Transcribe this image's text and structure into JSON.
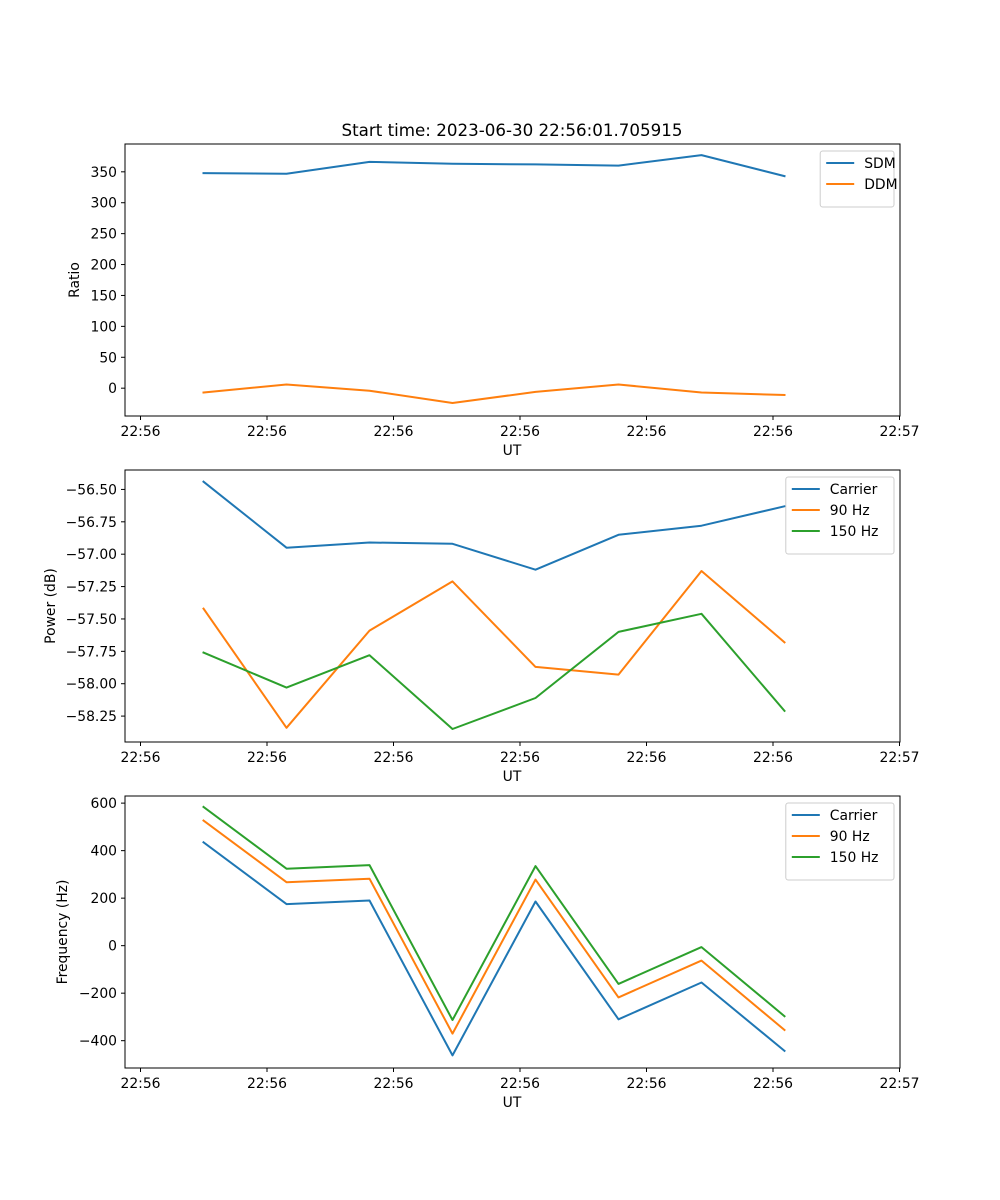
{
  "figure_title": "Start time: 2023-06-30 22:56:01.705915",
  "colors": {
    "blue": "#1f77b4",
    "orange": "#ff7f0e",
    "green": "#2ca02c"
  },
  "chart_data": [
    {
      "type": "line",
      "title": "Start time: 2023-06-30 22:56:01.705915",
      "xlabel": "UT",
      "ylabel": "Ratio",
      "x_tick_labels": [
        "22:56",
        "22:56",
        "22:56",
        "22:56",
        "22:56",
        "22:56",
        "22:57"
      ],
      "y_ticks": [
        0,
        50,
        100,
        150,
        200,
        250,
        300,
        350
      ],
      "ylim": [
        -45,
        395
      ],
      "x_index": [
        0,
        1,
        2,
        3,
        4,
        5,
        6,
        7
      ],
      "legend_position": "upper right",
      "grid": false,
      "series": [
        {
          "name": "SDM",
          "color": "#1f77b4",
          "values": [
            348,
            347,
            366,
            363,
            362,
            360,
            377,
            343
          ]
        },
        {
          "name": "DDM",
          "color": "#ff7f0e",
          "values": [
            -7,
            6,
            -4,
            -24,
            -6,
            6,
            -7,
            -11
          ]
        }
      ]
    },
    {
      "type": "line",
      "xlabel": "UT",
      "ylabel": "Power (dB)",
      "x_tick_labels": [
        "22:56",
        "22:56",
        "22:56",
        "22:56",
        "22:56",
        "22:56",
        "22:57"
      ],
      "y_ticks": [
        -58.25,
        -58.0,
        -57.75,
        -57.5,
        -57.25,
        -57.0,
        -56.75,
        -56.5
      ],
      "y_tick_labels": [
        "−58.25",
        "−58.00",
        "−57.75",
        "−57.50",
        "−57.25",
        "−57.00",
        "−56.75",
        "−56.50"
      ],
      "ylim": [
        -58.45,
        -56.35
      ],
      "x_index": [
        0,
        1,
        2,
        3,
        4,
        5,
        6,
        7
      ],
      "legend_position": "upper right",
      "grid": false,
      "series": [
        {
          "name": "Carrier",
          "color": "#1f77b4",
          "values": [
            -56.44,
            -56.95,
            -56.91,
            -56.92,
            -57.12,
            -56.85,
            -56.78,
            -56.63
          ]
        },
        {
          "name": "90 Hz",
          "color": "#ff7f0e",
          "values": [
            -57.42,
            -58.34,
            -57.59,
            -57.21,
            -57.87,
            -57.93,
            -57.13,
            -57.68
          ]
        },
        {
          "name": "150 Hz",
          "color": "#2ca02c",
          "values": [
            -57.76,
            -58.03,
            -57.78,
            -58.35,
            -58.11,
            -57.6,
            -57.46,
            -58.21
          ]
        }
      ]
    },
    {
      "type": "line",
      "xlabel": "UT",
      "ylabel": "Frequency (Hz)",
      "x_tick_labels": [
        "22:56",
        "22:56",
        "22:56",
        "22:56",
        "22:56",
        "22:56",
        "22:57"
      ],
      "y_ticks": [
        -400,
        -200,
        0,
        200,
        400,
        600
      ],
      "y_tick_labels": [
        "−400",
        "−200",
        "0",
        "200",
        "400",
        "600"
      ],
      "ylim": [
        -515,
        630
      ],
      "x_index": [
        0,
        1,
        2,
        3,
        4,
        5,
        6,
        7
      ],
      "legend_position": "upper right",
      "grid": false,
      "series": [
        {
          "name": "Carrier",
          "color": "#1f77b4",
          "values": [
            435,
            175,
            190,
            -462,
            186,
            -310,
            -155,
            -443
          ]
        },
        {
          "name": "90 Hz",
          "color": "#ff7f0e",
          "values": [
            527,
            267,
            282,
            -370,
            278,
            -218,
            -63,
            -355
          ]
        },
        {
          "name": "150 Hz",
          "color": "#2ca02c",
          "values": [
            584,
            324,
            339,
            -313,
            335,
            -161,
            -6,
            -297
          ]
        }
      ]
    }
  ]
}
